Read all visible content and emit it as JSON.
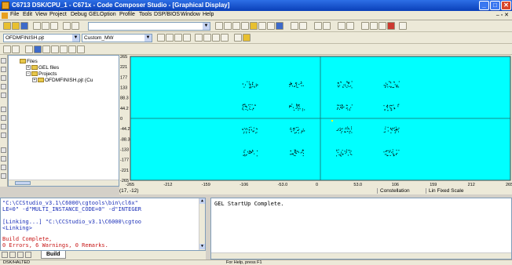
{
  "window": {
    "title": "C6713 DSK/CPU_1 - C671x - Code Composer Studio - [Graphical Display]"
  },
  "menu": [
    "File",
    "Edit",
    "View",
    "Project",
    "Debug",
    "GEL",
    "Option",
    "Profile",
    "Tools",
    "DSP/BIOS",
    "Window",
    "Help"
  ],
  "toolbar2": {
    "project": "OFDMFINISH.pjt",
    "config": "Custom_MW"
  },
  "filetree": {
    "root": "Files",
    "gel": "GEL files",
    "projects": "Projects",
    "project": "OFDMFINISH.pjt (Cu"
  },
  "graph": {
    "ylabels": [
      "265",
      "221",
      "177",
      "133",
      "88.3",
      "44.2",
      "0",
      "-44.2",
      "-88.3",
      "-133",
      "-177",
      "-221",
      "-265"
    ],
    "xlabels": [
      "-265",
      "-212",
      "-159",
      "-106",
      "-53.0",
      "0",
      "53.0",
      "106",
      "159",
      "212",
      "265"
    ],
    "cursor": "(17, -12)",
    "mode": "Constellation",
    "scale": "Lin  Fixed Scale",
    "background": "#00ffff",
    "point_color": "#000000"
  },
  "build": {
    "lines": [
      {
        "text": "\"C:\\CCStudio_v3.1\\C6000\\cgtools\\bin\\cl6x\"",
        "color": "blue"
      },
      {
        "text": "LE=0\" -d\"MULTI_INSTANCE_CODE=0\" -d\"INTEGER",
        "color": "blue"
      },
      {
        "text": "",
        "color": ""
      },
      {
        "text": "[Linking...] \"C:\\CCStudio_v3.1\\C6000\\cgtoo",
        "color": "blue"
      },
      {
        "text": "<Linking>",
        "color": "blue"
      },
      {
        "text": "",
        "color": ""
      },
      {
        "text": "Build Complete,",
        "color": "red"
      },
      {
        "text": "  0 Errors, 6 Warnings, 0 Remarks.",
        "color": "red"
      }
    ],
    "tab": "Build"
  },
  "gel": {
    "line": "GEL StartUp Complete."
  },
  "status": {
    "left": "DSK/HALTED",
    "middle": "For Help, press F1"
  }
}
